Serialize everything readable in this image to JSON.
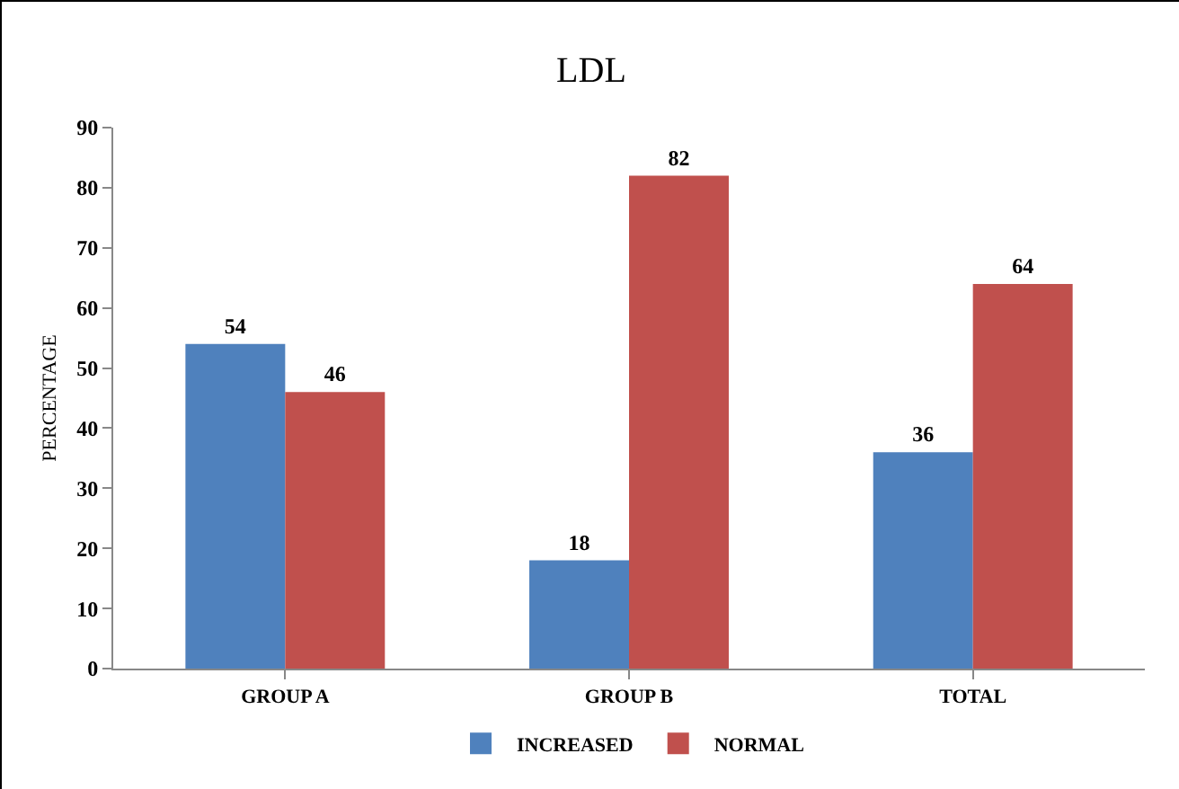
{
  "chart_data": {
    "type": "bar",
    "title": "LDL",
    "ylabel": "PERCENTAGE",
    "categories": [
      "GROUP A",
      "GROUP B",
      "TOTAL"
    ],
    "series": [
      {
        "name": "INCREASED",
        "color": "#4f81bd",
        "values": [
          54,
          18,
          36
        ]
      },
      {
        "name": "NORMAL",
        "color": "#c0504d",
        "values": [
          46,
          82,
          64
        ]
      }
    ],
    "ylim": [
      0,
      90
    ],
    "yticks": [
      0,
      10,
      20,
      30,
      40,
      50,
      60,
      70,
      80,
      90
    ],
    "grid": false,
    "legend": "bottom",
    "data_labels": true
  }
}
